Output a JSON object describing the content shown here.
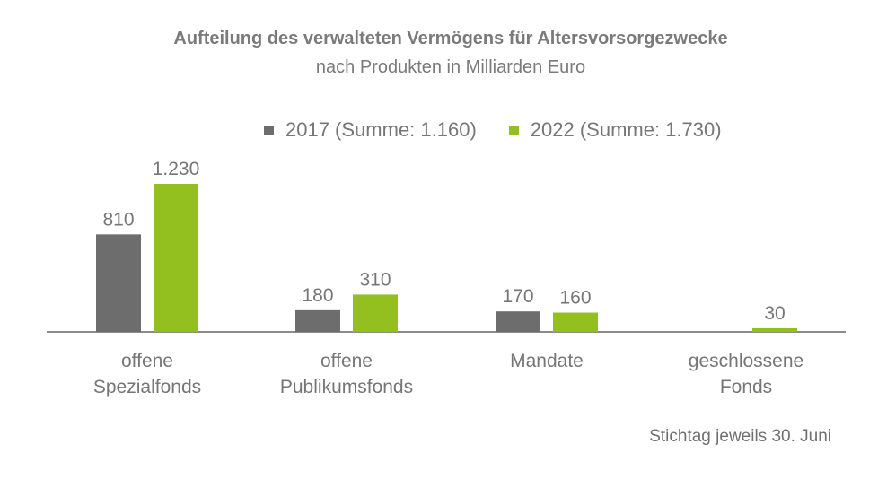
{
  "chart_data": {
    "type": "bar",
    "title": "Aufteilung des verwalteten Vermögens für Altersvorsorgezwecke",
    "subtitle": "nach Produkten in Milliarden Euro",
    "categories": [
      [
        "offene",
        "Spezialfonds"
      ],
      [
        "offene",
        "Publikumsfonds"
      ],
      [
        "Mandate"
      ],
      [
        "geschlossene",
        "Fonds"
      ]
    ],
    "series": [
      {
        "name": "2017 (Summe: 1.160)",
        "color": "#6d6d6d",
        "values": [
          810,
          180,
          170,
          0
        ],
        "labels": [
          "810",
          "180",
          "170",
          ""
        ]
      },
      {
        "name": "2022 (Summe: 1.730)",
        "color": "#93c01f",
        "values": [
          1230,
          310,
          160,
          30
        ],
        "labels": [
          "1.230",
          "310",
          "160",
          "30"
        ]
      }
    ],
    "ylim": [
      0,
      1230
    ],
    "legend_position": "top",
    "grid": false
  },
  "footnote": "Stichtag jeweils 30. Juni",
  "colors": {
    "axis": "#8c8c8c",
    "text": "#767676"
  }
}
